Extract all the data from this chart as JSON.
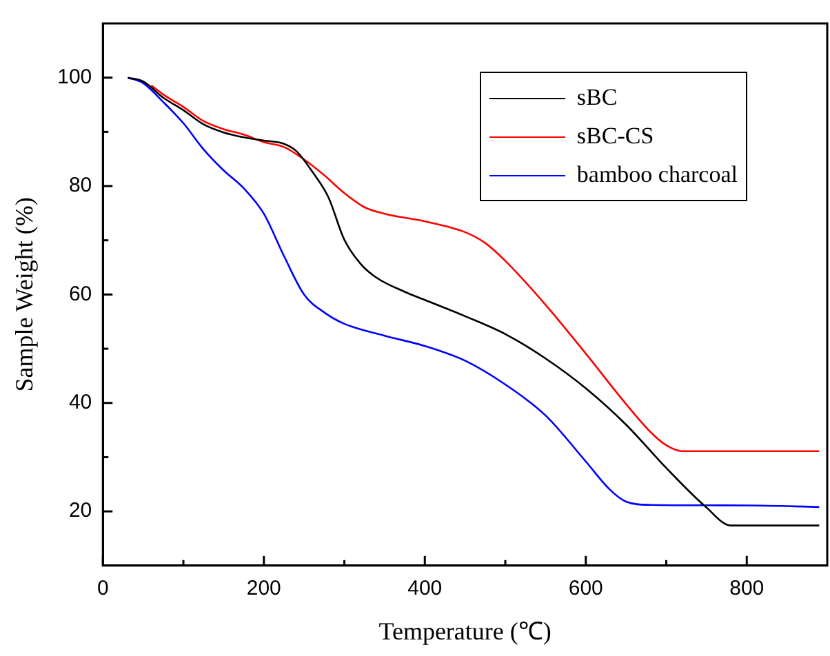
{
  "chart_data": {
    "type": "line",
    "xlabel": "Temperature (℃)",
    "ylabel": "Sample Weight (%)",
    "xlim": [
      0,
      900
    ],
    "xticks": [
      0,
      {
        "value": 100,
        "label": null
      },
      200,
      {
        "value": 300,
        "label": null
      },
      400,
      {
        "value": 500,
        "label": null
      },
      600,
      {
        "value": 700,
        "label": null
      },
      800
    ],
    "ylim": [
      10,
      110
    ],
    "yticks": [
      20,
      {
        "value": 30,
        "label": null
      },
      40,
      {
        "value": 50,
        "label": null
      },
      60,
      {
        "value": 70,
        "label": null
      },
      80,
      {
        "value": 90,
        "label": null
      },
      100
    ],
    "grid": false,
    "legend": "top right",
    "marker": "none",
    "line_style": "solid",
    "series": [
      {
        "name": "sBC",
        "color": "#000000",
        "x": [
          31,
          50,
          75,
          100,
          125,
          150,
          175,
          200,
          225,
          240,
          260,
          280,
          300,
          320,
          340,
          375,
          400,
          450,
          500,
          550,
          600,
          650,
          700,
          750,
          780,
          800,
          890
        ],
        "values": [
          100,
          99.3,
          96.3,
          94,
          91.4,
          89.9,
          89,
          88.4,
          87.8,
          86.5,
          82.7,
          78,
          70.1,
          65.7,
          63.1,
          60.5,
          59,
          56,
          52.7,
          48.2,
          42.7,
          36,
          28,
          20.7,
          17.4,
          17.4,
          17.4
        ]
      },
      {
        "name": "sBC-CS",
        "color": "#ff0000",
        "x": [
          60,
          75,
          100,
          125,
          150,
          175,
          200,
          225,
          250,
          275,
          300,
          325,
          350,
          400,
          450,
          475,
          500,
          550,
          600,
          650,
          680,
          700,
          720,
          800,
          890
        ],
        "values": [
          98.6,
          96.9,
          94.6,
          92,
          90.5,
          89.5,
          88.1,
          87.2,
          84.9,
          82,
          78.7,
          76.1,
          74.9,
          73.5,
          71.5,
          69.5,
          66.2,
          58.1,
          49.1,
          39.8,
          34.7,
          32.2,
          31.1,
          31.1,
          31.1
        ]
      },
      {
        "name": "bamboo charcoal",
        "color": "#0000ff",
        "x": [
          31,
          50,
          75,
          100,
          125,
          150,
          175,
          200,
          225,
          250,
          275,
          300,
          350,
          400,
          450,
          500,
          550,
          600,
          630,
          650,
          680,
          800,
          890
        ],
        "values": [
          100,
          99,
          95.5,
          91.6,
          86.8,
          82.9,
          79.6,
          74.9,
          67.1,
          60,
          56.7,
          54.6,
          52.4,
          50.5,
          47.8,
          43.4,
          37.7,
          29.2,
          24,
          21.8,
          21.2,
          21.1,
          20.8
        ]
      }
    ]
  }
}
